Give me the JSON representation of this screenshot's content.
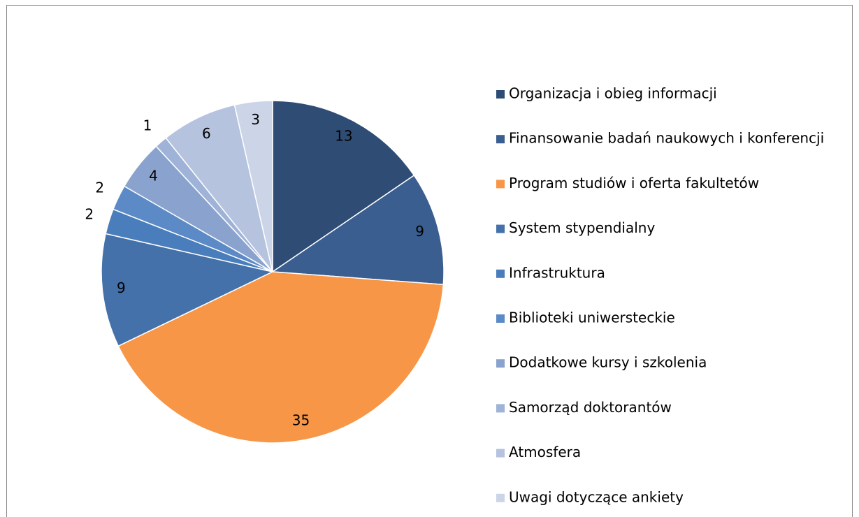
{
  "chart_data": {
    "type": "pie",
    "categories": [
      "Organizacja i obieg informacji",
      "Finansowanie badań naukowych i konferencji",
      "Program studiów i oferta fakultetów",
      "System stypendialny",
      "Infrastruktura",
      "Biblioteki uniwersteckie",
      "Dodatkowe kursy i szkolenia",
      "Samorząd doktorantów",
      "Atmosfera",
      "Uwagi dotyczące ankiety"
    ],
    "values": [
      13,
      9,
      35,
      9,
      2,
      2,
      4,
      1,
      6,
      3
    ],
    "colors": [
      "#2f4d74",
      "#3a5e90",
      "#f79646",
      "#4471a9",
      "#4a7dbb",
      "#5b8ac6",
      "#8aa3ce",
      "#9fb2d7",
      "#b5c3df",
      "#ccd5e8"
    ],
    "legend": "right"
  }
}
